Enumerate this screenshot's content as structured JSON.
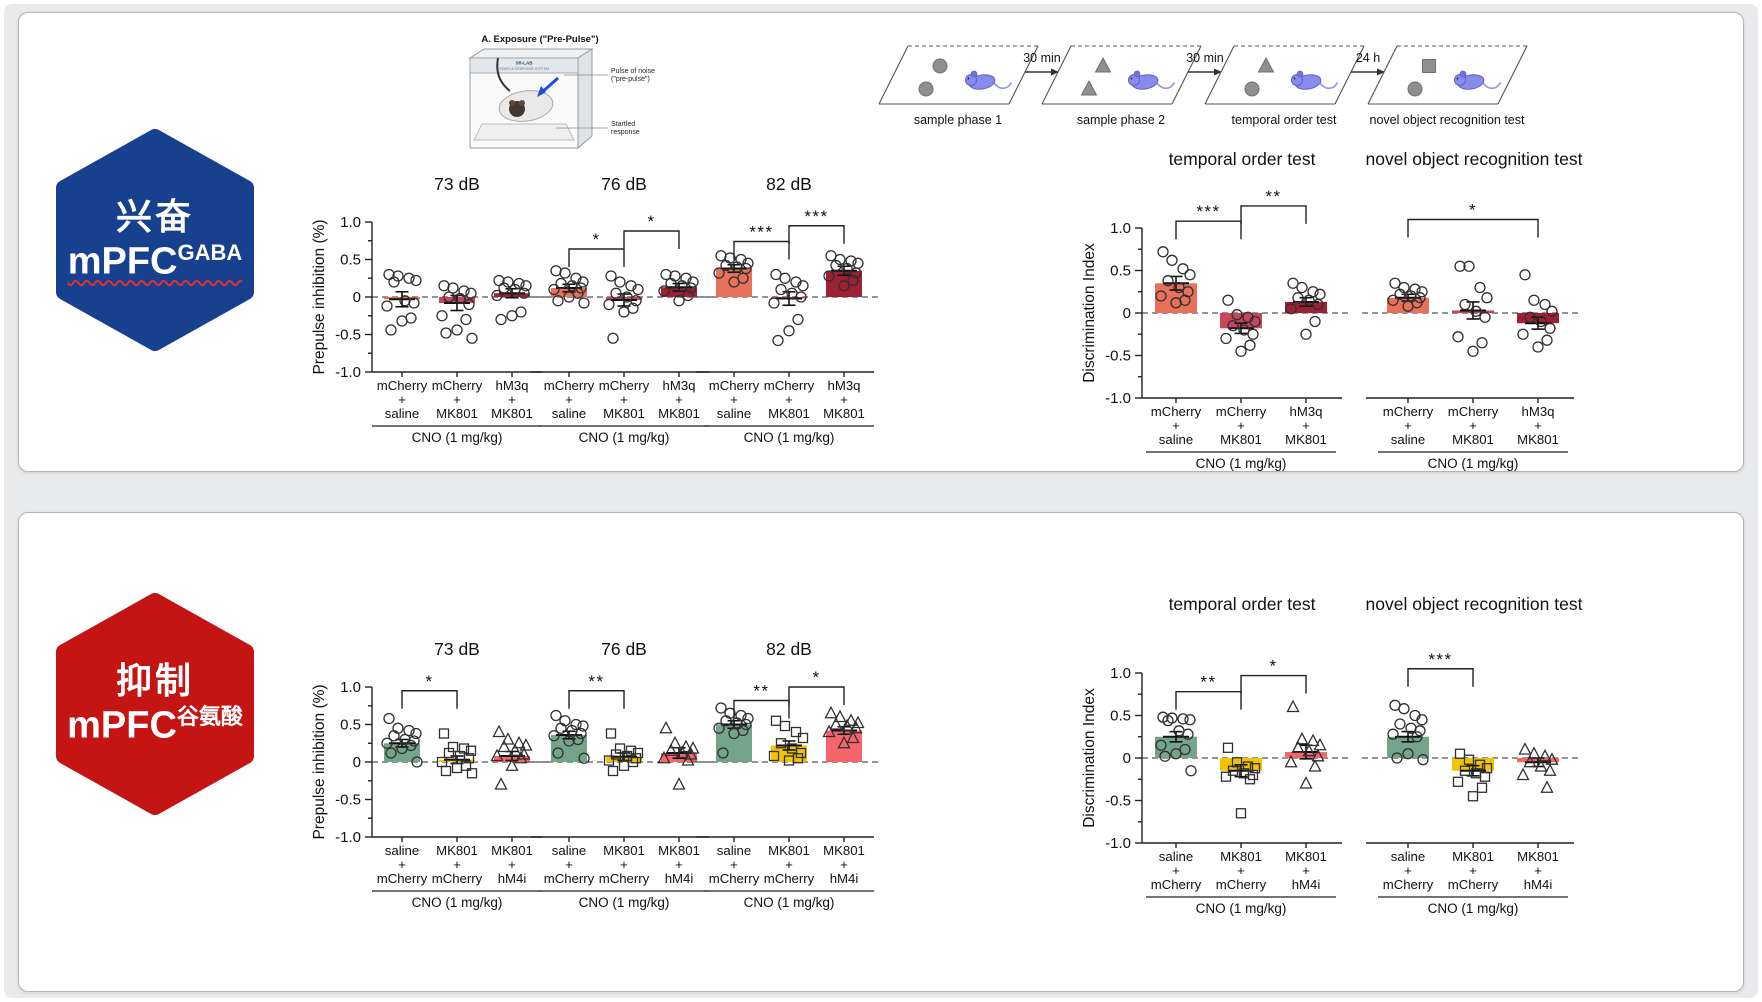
{
  "top_panel": {
    "hexagon": {
      "line1": "兴奋",
      "main": "mPFC",
      "sup": "GABA",
      "color": "#17418e"
    },
    "apparatus": {
      "title": "A. Exposure (\"Pre-Pulse\")",
      "device": "SR-LAB",
      "device2": "STARTLE RESPONSE SYSTEM",
      "label1a": "Pulse of noise",
      "label1b": "(\"pre-pulse\")",
      "label2a": "Startled",
      "label2b": "response"
    },
    "timeline": {
      "stages": [
        {
          "label": "sample phase 1",
          "objects": [
            "circle",
            "circle"
          ]
        },
        {
          "label": "sample phase 2",
          "objects": [
            "triangle",
            "triangle"
          ]
        },
        {
          "label": "temporal order test",
          "objects": [
            "triangle",
            "circle"
          ]
        },
        {
          "label": "novel object recognition test",
          "objects": [
            "square",
            "circle"
          ]
        }
      ],
      "intervals": [
        "30 min",
        "30 min",
        "24 h"
      ]
    }
  },
  "bottom_panel": {
    "hexagon": {
      "line1": "抑制",
      "main": "mPFC",
      "sup": "谷氨酸",
      "color": "#c41414"
    }
  },
  "chart_data": [
    {
      "id": "t73",
      "type": "bar",
      "title": "73 dB",
      "ylabel": "Prepulse inhibition (%)",
      "show_yaxis": true,
      "ylim": [
        -1,
        1
      ],
      "yticks": [
        1,
        0.5,
        0,
        -0.5,
        -1
      ],
      "categories": [
        [
          "mCherry",
          "+",
          "saline"
        ],
        [
          "mCherry",
          "+",
          "MK801"
        ],
        [
          "hM3q",
          "+",
          "MK801"
        ]
      ],
      "caption": "CNO (1 mg/kg)",
      "colors": [
        "#e8715c",
        "#c8455e",
        "#9e2133"
      ],
      "markers": [
        "circle",
        "circle",
        "circle"
      ],
      "bars": [
        -0.03,
        -0.08,
        0.05
      ],
      "errors": [
        0.1,
        0.1,
        0.06
      ],
      "points": [
        [
          0.3,
          0.28,
          0.25,
          0.22,
          0.2,
          -0.05,
          -0.08,
          -0.12,
          -0.28,
          -0.32,
          -0.44
        ],
        [
          0.15,
          0.12,
          0.08,
          0.05,
          0,
          -0.02,
          -0.1,
          -0.25,
          -0.3,
          -0.44,
          -0.48,
          -0.55
        ],
        [
          0.22,
          0.2,
          0.18,
          0.15,
          0.12,
          0.1,
          0.05,
          0.02,
          -0.2,
          -0.25,
          -0.3
        ]
      ],
      "sig": []
    },
    {
      "id": "t76",
      "type": "bar",
      "title": "76 dB",
      "show_yaxis": false,
      "ylim": [
        -1,
        1
      ],
      "yticks": [
        1,
        0.5,
        0,
        -0.5,
        -1
      ],
      "categories": [
        [
          "mCherry",
          "+",
          "saline"
        ],
        [
          "mCherry",
          "+",
          "MK801"
        ],
        [
          "hM3q",
          "+",
          "MK801"
        ]
      ],
      "caption": "CNO (1 mg/kg)",
      "colors": [
        "#e8715c",
        "#c8455e",
        "#9e2133"
      ],
      "markers": [
        "circle",
        "circle",
        "circle"
      ],
      "bars": [
        0.12,
        -0.04,
        0.13
      ],
      "errors": [
        0.05,
        0.08,
        0.05
      ],
      "points": [
        [
          0.35,
          0.32,
          0.25,
          0.2,
          0.18,
          0.15,
          0.12,
          0.1,
          0.05,
          0,
          -0.05,
          -0.08
        ],
        [
          0.28,
          0.2,
          0.15,
          0.1,
          0.05,
          0,
          -0.05,
          -0.1,
          -0.15,
          -0.2,
          -0.55
        ],
        [
          0.3,
          0.28,
          0.25,
          0.2,
          0.18,
          0.15,
          0.12,
          0.08,
          0.02,
          -0.05
        ]
      ],
      "sig": [
        {
          "a": 0,
          "b": 1,
          "label": "*",
          "y": 0.64
        },
        {
          "a": 1,
          "b": 2,
          "label": "*",
          "y": 0.88
        }
      ]
    },
    {
      "id": "t82",
      "type": "bar",
      "title": "82 dB",
      "show_yaxis": false,
      "ylim": [
        -1,
        1
      ],
      "yticks": [
        1,
        0.5,
        0,
        -0.5,
        -1
      ],
      "categories": [
        [
          "mCherry",
          "+",
          "saline"
        ],
        [
          "mCherry",
          "+",
          "MK801"
        ],
        [
          "hM3q",
          "+",
          "MK801"
        ]
      ],
      "caption": "CNO (1 mg/kg)",
      "colors": [
        "#e8715c",
        "#c8455e",
        "#9e2133"
      ],
      "markers": [
        "circle",
        "circle",
        "circle"
      ],
      "bars": [
        0.38,
        -0.02,
        0.35
      ],
      "errors": [
        0.05,
        0.09,
        0.06
      ],
      "points": [
        [
          0.55,
          0.52,
          0.5,
          0.45,
          0.42,
          0.4,
          0.38,
          0.32,
          0.25,
          0.2
        ],
        [
          0.3,
          0.25,
          0.2,
          0.15,
          0.1,
          0.05,
          0,
          -0.08,
          -0.3,
          -0.45,
          -0.58
        ],
        [
          0.55,
          0.5,
          0.48,
          0.45,
          0.42,
          0.38,
          0.32,
          0.28,
          0.22,
          0.15
        ]
      ],
      "sig": [
        {
          "a": 0,
          "b": 1,
          "label": "***",
          "y": 0.74
        },
        {
          "a": 1,
          "b": 2,
          "label": "***",
          "y": 0.95
        }
      ]
    },
    {
      "id": "tTO",
      "type": "bar",
      "title": "temporal order test",
      "ylabel": "Discrimination Index",
      "show_yaxis": true,
      "ylim": [
        -1,
        1
      ],
      "yticks": [
        1,
        0.5,
        0,
        -0.5,
        -1
      ],
      "categories": [
        [
          "mCherry",
          "+",
          "saline"
        ],
        [
          "mCherry",
          "+",
          "MK801"
        ],
        [
          "hM3q",
          "+",
          "MK801"
        ]
      ],
      "caption": "CNO (1 mg/kg)",
      "colors": [
        "#e8715c",
        "#c8455e",
        "#9e2133"
      ],
      "markers": [
        "circle",
        "circle",
        "circle"
      ],
      "bars": [
        0.35,
        -0.18,
        0.13
      ],
      "errors": [
        0.08,
        0.06,
        0.05
      ],
      "points": [
        [
          0.72,
          0.62,
          0.52,
          0.45,
          0.38,
          0.3,
          0.25,
          0.2,
          0.15,
          0.12
        ],
        [
          0.15,
          -0.02,
          -0.05,
          -0.1,
          -0.15,
          -0.2,
          -0.25,
          -0.3,
          -0.38,
          -0.45
        ],
        [
          0.35,
          0.3,
          0.25,
          0.22,
          0.18,
          0.15,
          0.1,
          0.05,
          -0.1,
          -0.25
        ]
      ],
      "sig": [
        {
          "a": 0,
          "b": 1,
          "label": "***",
          "y": 1.08
        },
        {
          "a": 1,
          "b": 2,
          "label": "**",
          "y": 1.26
        }
      ]
    },
    {
      "id": "tNOR",
      "type": "bar",
      "title": "novel object recognition test",
      "show_yaxis": false,
      "ylim": [
        -1,
        1
      ],
      "yticks": [
        1,
        0.5,
        0,
        -0.5,
        -1
      ],
      "categories": [
        [
          "mCherry",
          "+",
          "saline"
        ],
        [
          "mCherry",
          "+",
          "MK801"
        ],
        [
          "hM3q",
          "+",
          "MK801"
        ]
      ],
      "caption": "CNO (1 mg/kg)",
      "colors": [
        "#e8715c",
        "#c8455e",
        "#9e2133"
      ],
      "markers": [
        "circle",
        "circle",
        "circle"
      ],
      "bars": [
        0.18,
        0.03,
        -0.12
      ],
      "errors": [
        0.04,
        0.1,
        0.07
      ],
      "points": [
        [
          0.35,
          0.3,
          0.28,
          0.25,
          0.22,
          0.2,
          0.18,
          0.15,
          0.12,
          0.08
        ],
        [
          0.55,
          0.55,
          0.3,
          0.18,
          0.1,
          0.02,
          -0.05,
          -0.28,
          -0.35,
          -0.45
        ],
        [
          0.45,
          0.15,
          0.1,
          0.02,
          -0.05,
          -0.1,
          -0.18,
          -0.25,
          -0.32,
          -0.4
        ]
      ],
      "sig": [
        {
          "a": 0,
          "b": 2,
          "label": "*",
          "y": 1.1
        }
      ]
    },
    {
      "id": "b73",
      "type": "bar",
      "title": "73 dB",
      "ylabel": "Prepulse inhibition (%)",
      "show_yaxis": true,
      "ylim": [
        -1,
        1
      ],
      "yticks": [
        1,
        0.5,
        0,
        -0.5,
        -1
      ],
      "categories": [
        [
          "saline",
          "+",
          "mCherry"
        ],
        [
          "MK801",
          "+",
          "mCherry"
        ],
        [
          "MK801",
          "+",
          "hM4i"
        ]
      ],
      "caption": "CNO (1 mg/kg)",
      "colors": [
        "#74a58b",
        "#f2c400",
        "#f4666b"
      ],
      "markers": [
        "circle",
        "square",
        "triangle"
      ],
      "bars": [
        0.25,
        0.03,
        0.08
      ],
      "errors": [
        0.05,
        0.05,
        0.06
      ],
      "points": [
        [
          0.58,
          0.45,
          0.42,
          0.38,
          0.35,
          0.3,
          0.28,
          0.25,
          0.22,
          0.18,
          0.12,
          0
        ],
        [
          0.38,
          0.2,
          0.18,
          0.15,
          0.12,
          0.08,
          0.05,
          0,
          -0.05,
          -0.08,
          -0.12,
          -0.15
        ],
        [
          0.4,
          0.3,
          0.25,
          0.22,
          0.2,
          0.15,
          0.1,
          0.08,
          0.05,
          -0.05,
          -0.3
        ]
      ],
      "sig": [
        {
          "a": 0,
          "b": 1,
          "label": "*",
          "y": 0.95
        }
      ]
    },
    {
      "id": "b76",
      "type": "bar",
      "title": "76 dB",
      "show_yaxis": false,
      "ylim": [
        -1,
        1
      ],
      "yticks": [
        1,
        0.5,
        0,
        -0.5,
        -1
      ],
      "categories": [
        [
          "saline",
          "+",
          "mCherry"
        ],
        [
          "MK801",
          "+",
          "mCherry"
        ],
        [
          "MK801",
          "+",
          "hM4i"
        ]
      ],
      "caption": "CNO (1 mg/kg)",
      "colors": [
        "#74a58b",
        "#f2c400",
        "#f4666b"
      ],
      "markers": [
        "circle",
        "square",
        "triangle"
      ],
      "bars": [
        0.36,
        0.07,
        0.12
      ],
      "errors": [
        0.05,
        0.05,
        0.07
      ],
      "points": [
        [
          0.62,
          0.55,
          0.5,
          0.48,
          0.45,
          0.42,
          0.38,
          0.35,
          0.3,
          0.28,
          0.12,
          0.05
        ],
        [
          0.38,
          0.18,
          0.15,
          0.12,
          0.1,
          0.08,
          0.05,
          0.02,
          0,
          -0.05,
          -0.12
        ],
        [
          0.45,
          0.25,
          0.2,
          0.18,
          0.15,
          0.12,
          0.1,
          0.05,
          0.02,
          -0.3
        ]
      ],
      "sig": [
        {
          "a": 0,
          "b": 1,
          "label": "**",
          "y": 0.95
        }
      ]
    },
    {
      "id": "b82",
      "type": "bar",
      "title": "82 dB",
      "show_yaxis": false,
      "ylim": [
        -1,
        1
      ],
      "yticks": [
        1,
        0.5,
        0,
        -0.5,
        -1
      ],
      "categories": [
        [
          "saline",
          "+",
          "mCherry"
        ],
        [
          "MK801",
          "+",
          "mCherry"
        ],
        [
          "MK801",
          "+",
          "hM4i"
        ]
      ],
      "caption": "CNO (1 mg/kg)",
      "colors": [
        "#74a58b",
        "#f2c400",
        "#f4666b"
      ],
      "markers": [
        "circle",
        "square",
        "triangle"
      ],
      "bars": [
        0.5,
        0.22,
        0.42
      ],
      "errors": [
        0.05,
        0.06,
        0.05
      ],
      "points": [
        [
          0.72,
          0.65,
          0.62,
          0.58,
          0.55,
          0.52,
          0.5,
          0.45,
          0.42,
          0.38,
          0.12
        ],
        [
          0.55,
          0.48,
          0.4,
          0.32,
          0.25,
          0.18,
          0.12,
          0.08,
          0.05,
          0.02
        ],
        [
          0.65,
          0.6,
          0.55,
          0.52,
          0.5,
          0.48,
          0.45,
          0.4,
          0.32,
          0.25
        ]
      ],
      "sig": [
        {
          "a": 0,
          "b": 1,
          "label": "**",
          "y": 0.82
        },
        {
          "a": 1,
          "b": 2,
          "label": "*",
          "y": 1.0
        }
      ]
    },
    {
      "id": "bTO",
      "type": "bar",
      "title": "temporal order test",
      "ylabel": "Discrimination Index",
      "show_yaxis": true,
      "ylim": [
        -1,
        1
      ],
      "yticks": [
        1,
        0.5,
        0,
        -0.5,
        -1
      ],
      "categories": [
        [
          "saline",
          "+",
          "mCherry"
        ],
        [
          "MK801",
          "+",
          "mCherry"
        ],
        [
          "MK801",
          "+",
          "hM4i"
        ]
      ],
      "caption": "CNO (1 mg/kg)",
      "colors": [
        "#74a58b",
        "#f2c400",
        "#f4666b"
      ],
      "markers": [
        "circle",
        "square",
        "triangle"
      ],
      "bars": [
        0.25,
        -0.15,
        0.07
      ],
      "errors": [
        0.06,
        0.07,
        0.08
      ],
      "points": [
        [
          0.48,
          0.47,
          0.46,
          0.45,
          0.44,
          0.32,
          0.28,
          0.15,
          0.1,
          0.05,
          0.02,
          -0.15
        ],
        [
          0.12,
          -0.05,
          -0.1,
          -0.12,
          -0.15,
          -0.18,
          -0.2,
          -0.22,
          -0.25,
          -0.65
        ],
        [
          0.6,
          0.22,
          0.2,
          0.15,
          0.12,
          0.08,
          0.02,
          -0.05,
          -0.1,
          -0.3
        ]
      ],
      "sig": [
        {
          "a": 0,
          "b": 1,
          "label": "**",
          "y": 0.78
        },
        {
          "a": 1,
          "b": 2,
          "label": "*",
          "y": 0.97
        }
      ]
    },
    {
      "id": "bNOR",
      "type": "bar",
      "title": "novel object recognition test",
      "show_yaxis": false,
      "ylim": [
        -1,
        1
      ],
      "yticks": [
        1,
        0.5,
        0,
        -0.5,
        -1
      ],
      "categories": [
        [
          "saline",
          "+",
          "mCherry"
        ],
        [
          "MK801",
          "+",
          "mCherry"
        ],
        [
          "MK801",
          "+",
          "hM4i"
        ]
      ],
      "caption": "CNO (1 mg/kg)",
      "colors": [
        "#74a58b",
        "#f2c400",
        "#f4666b"
      ],
      "markers": [
        "circle",
        "square",
        "triangle"
      ],
      "bars": [
        0.25,
        -0.15,
        -0.05
      ],
      "errors": [
        0.06,
        0.06,
        0.05
      ],
      "points": [
        [
          0.62,
          0.58,
          0.5,
          0.45,
          0.4,
          0.35,
          0.32,
          0.28,
          0.25,
          0.05,
          0,
          -0.02
        ],
        [
          0.05,
          -0.02,
          -0.08,
          -0.12,
          -0.15,
          -0.18,
          -0.22,
          -0.28,
          -0.35,
          -0.45
        ],
        [
          0.1,
          0.05,
          0.02,
          -0.02,
          -0.05,
          -0.1,
          -0.15,
          -0.2,
          -0.35
        ]
      ],
      "sig": [
        {
          "a": 0,
          "b": 1,
          "label": "***",
          "y": 1.05
        }
      ]
    }
  ]
}
